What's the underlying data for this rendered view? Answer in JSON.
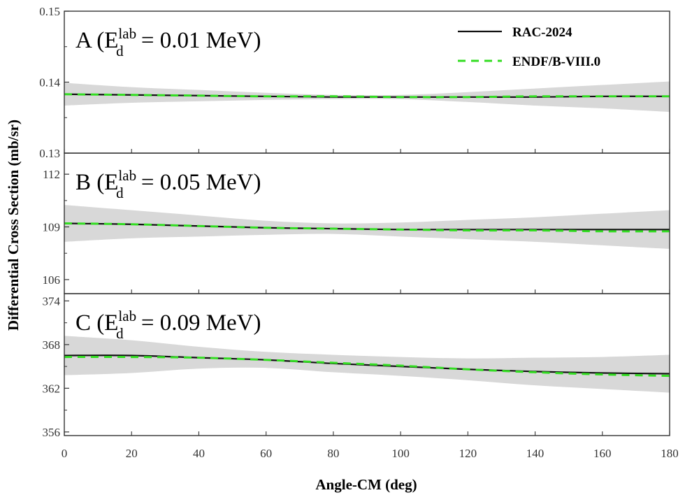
{
  "chart_data": {
    "type": "line",
    "ylabel": "Differential Cross Section (mb/sr)",
    "xlabel": "Angle-CM (deg)",
    "xlim": [
      0,
      180
    ],
    "x_ticks": [
      0,
      20,
      40,
      60,
      80,
      100,
      120,
      140,
      160,
      180
    ],
    "legend": {
      "position": "top-right",
      "entries": [
        {
          "name": "RAC-2024",
          "style": "solid",
          "color": "#111111"
        },
        {
          "name": "ENDF/B-VIII.0",
          "style": "dashed",
          "color": "#33dd22"
        }
      ]
    },
    "colors": {
      "band": "#d8d8d8",
      "rac": "#111111",
      "endf": "#33dd22"
    },
    "panels": [
      {
        "id": "A",
        "label": {
          "letter": "A (E",
          "sup": "lab",
          "sub": "d",
          "rest": " = 0.01 MeV)"
        },
        "ylim": [
          0.13,
          0.15
        ],
        "y_ticks": [
          "0.13",
          "0.14",
          "0.15"
        ],
        "y_tick_values": [
          0.13,
          0.14,
          0.15
        ],
        "x": [
          0,
          20,
          40,
          60,
          80,
          100,
          120,
          140,
          160,
          180
        ],
        "series": [
          {
            "name": "RAC-2024",
            "values": [
              0.1383,
              0.1382,
              0.1381,
              0.138,
              0.1379,
              0.1379,
              0.1379,
              0.1379,
              0.138,
              0.138
            ]
          },
          {
            "name": "ENDF/B-VIII.0",
            "values": [
              0.1383,
              0.1382,
              0.1381,
              0.138,
              0.138,
              0.1379,
              0.1379,
              0.138,
              0.138,
              0.138
            ]
          }
        ],
        "band_upper": [
          0.1399,
          0.1393,
          0.1389,
          0.1385,
          0.1382,
          0.1382,
          0.1386,
          0.1391,
          0.1396,
          0.1401
        ],
        "band_lower": [
          0.1367,
          0.1371,
          0.1373,
          0.1375,
          0.1376,
          0.1376,
          0.1372,
          0.1367,
          0.1363,
          0.1358
        ]
      },
      {
        "id": "B",
        "label": {
          "letter": "B (E",
          "sup": "lab",
          "sub": "d",
          "rest": " = 0.05 MeV)"
        },
        "ylim": [
          105.2,
          113.2
        ],
        "y_ticks": [
          "106",
          "109",
          "112"
        ],
        "y_tick_values": [
          106,
          109,
          112
        ],
        "x": [
          0,
          20,
          40,
          60,
          80,
          100,
          120,
          140,
          160,
          180
        ],
        "series": [
          {
            "name": "RAC-2024",
            "values": [
              109.2,
              109.15,
              109.05,
              108.95,
              108.9,
              108.85,
              108.85,
              108.85,
              108.85,
              108.85
            ]
          },
          {
            "name": "ENDF/B-VIII.0",
            "values": [
              109.2,
              109.15,
              109.05,
              108.95,
              108.9,
              108.85,
              108.8,
              108.8,
              108.75,
              108.75
            ]
          }
        ],
        "band_upper": [
          110.25,
          109.95,
          109.65,
          109.35,
          109.2,
          109.25,
          109.4,
          109.55,
          109.75,
          109.95
        ],
        "band_lower": [
          108.15,
          108.35,
          108.45,
          108.55,
          108.6,
          108.45,
          108.3,
          108.15,
          107.95,
          107.75
        ]
      },
      {
        "id": "C",
        "label": {
          "letter": "C (E",
          "sup": "lab",
          "sub": "d",
          "rest": " = 0.09 MeV)"
        },
        "ylim": [
          355.5,
          375
        ],
        "y_ticks": [
          "356",
          "362",
          "368",
          "374"
        ],
        "y_tick_values": [
          356,
          362,
          368,
          374
        ],
        "x": [
          0,
          20,
          40,
          60,
          80,
          100,
          120,
          140,
          160,
          180
        ],
        "series": [
          {
            "name": "RAC-2024",
            "values": [
              366.5,
              366.5,
              366.2,
              365.9,
              365.4,
              365.0,
              364.6,
              364.3,
              364.1,
              364.0
            ]
          },
          {
            "name": "ENDF/B-VIII.0",
            "values": [
              366.3,
              366.3,
              366.2,
              365.9,
              365.5,
              365.1,
              364.6,
              364.2,
              363.9,
              363.7
            ]
          }
        ],
        "band_upper": [
          369.2,
          368.6,
          367.7,
          367.0,
          366.6,
          366.3,
          366.1,
          366.2,
          366.3,
          366.6
        ],
        "band_lower": [
          363.8,
          364.1,
          364.7,
          364.8,
          364.2,
          363.7,
          363.1,
          362.4,
          361.9,
          361.4
        ]
      }
    ]
  }
}
